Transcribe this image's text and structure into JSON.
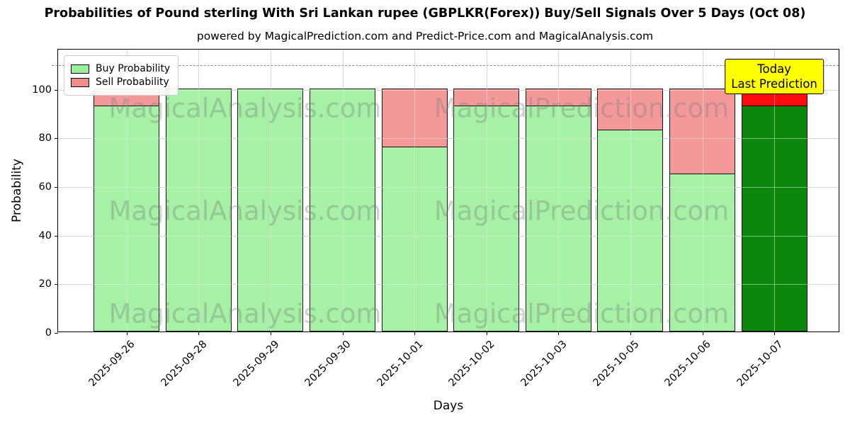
{
  "title": "Probabilities of Pound sterling With Sri Lankan rupee (GBPLKR(Forex)) Buy/Sell Signals Over 5 Days (Oct 08)",
  "subtitle": "powered by MagicalPrediction.com and Predict-Price.com and MagicalAnalysis.com",
  "watermark": {
    "left_text": "MagicalAnalysis.com",
    "right_text": "MagicalPrediction.com"
  },
  "annotation": {
    "line1": "Today",
    "line2": "Last Prediction",
    "bg_color": "#ffff00"
  },
  "legend": {
    "items": [
      {
        "label": "Buy Probability",
        "color": "#90ee90"
      },
      {
        "label": "Sell Probability",
        "color": "#f08080"
      }
    ]
  },
  "chart_data": {
    "type": "bar",
    "stacked": true,
    "title": "Probabilities of Pound sterling With Sri Lankan rupee (GBPLKR(Forex)) Buy/Sell Signals Over 5 Days (Oct 08)",
    "xlabel": "Days",
    "ylabel": "Probability",
    "categories": [
      "2025-09-26",
      "2025-09-28",
      "2025-09-29",
      "2025-09-30",
      "2025-10-01",
      "2025-10-02",
      "2025-10-03",
      "2025-10-05",
      "2025-10-06",
      "2025-10-07"
    ],
    "series": [
      {
        "name": "Buy Probability",
        "color": "#90ee90",
        "values": [
          93,
          100,
          100,
          100,
          76,
          93,
          93,
          83,
          65,
          93
        ]
      },
      {
        "name": "Sell Probability",
        "color": "#f08080",
        "values": [
          7,
          0,
          0,
          0,
          24,
          7,
          7,
          17,
          35,
          7
        ]
      }
    ],
    "today_index": 9,
    "today_colors": {
      "buy": "#008000",
      "sell": "#ff0000"
    },
    "yticks": [
      0,
      20,
      40,
      60,
      80,
      100
    ],
    "ylim": [
      0,
      116.5
    ],
    "dashed_line_y": 110,
    "grid": true,
    "legend_position": "upper left"
  }
}
